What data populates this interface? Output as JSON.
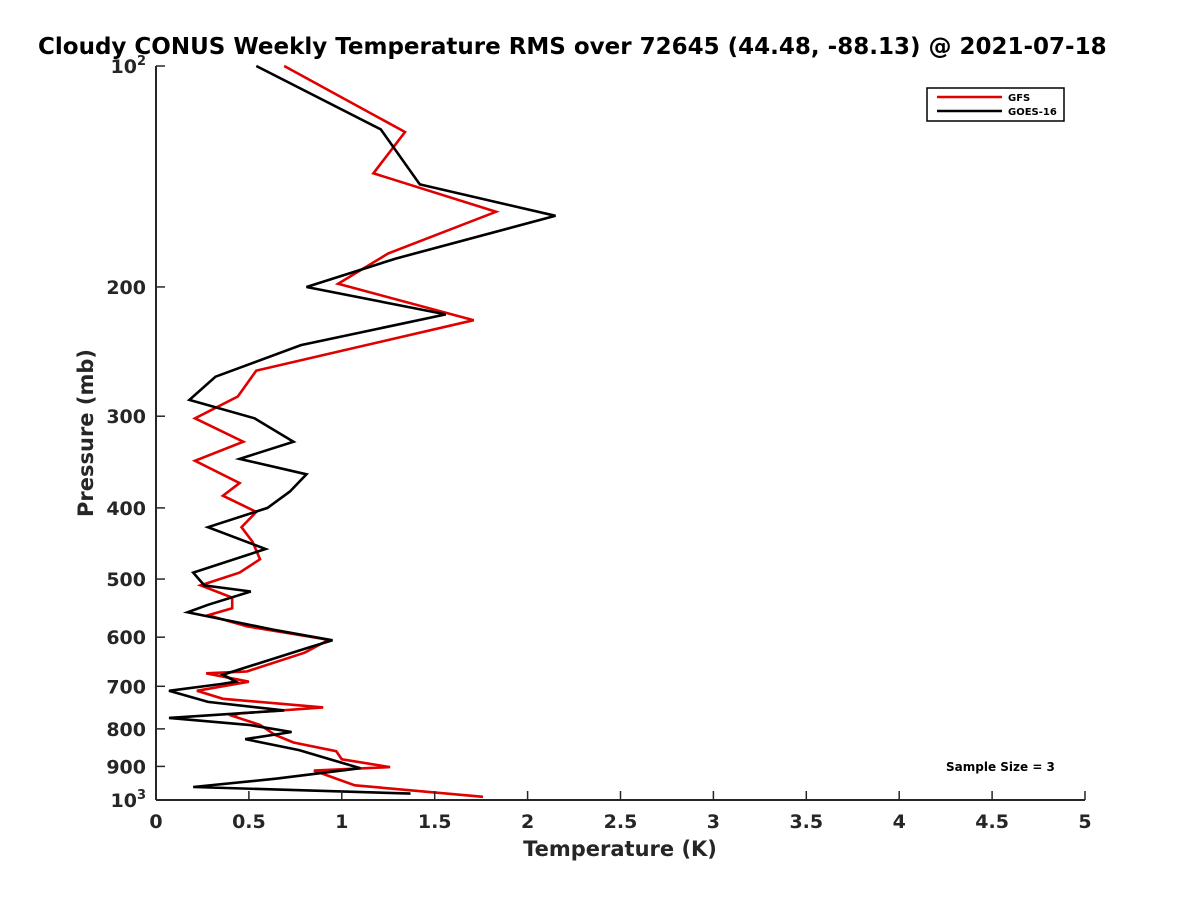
{
  "chart_data": {
    "type": "line",
    "title": "Cloudy CONUS Weekly Temperature RMS over 72645 (44.48, -88.13) @ 2021-07-18",
    "xlabel": "Temperature (K)",
    "ylabel": "Pressure (mb)",
    "xlim": [
      0,
      5
    ],
    "ylim": [
      100,
      1000
    ],
    "y_scale": "log",
    "y_reversed": true,
    "x_ticks": [
      {
        "value": 0,
        "label": "0"
      },
      {
        "value": 0.5,
        "label": "0.5"
      },
      {
        "value": 1,
        "label": "1"
      },
      {
        "value": 1.5,
        "label": "1.5"
      },
      {
        "value": 2,
        "label": "2"
      },
      {
        "value": 2.5,
        "label": "2.5"
      },
      {
        "value": 3,
        "label": "3"
      },
      {
        "value": 3.5,
        "label": "3.5"
      },
      {
        "value": 4,
        "label": "4"
      },
      {
        "value": 4.5,
        "label": "4.5"
      },
      {
        "value": 5,
        "label": "5"
      }
    ],
    "y_ticks": [
      {
        "value": 100,
        "base": "10",
        "exp": "2"
      },
      {
        "value": 200,
        "label": "200"
      },
      {
        "value": 300,
        "label": "300"
      },
      {
        "value": 400,
        "label": "400"
      },
      {
        "value": 500,
        "label": "500"
      },
      {
        "value": 600,
        "label": "600"
      },
      {
        "value": 700,
        "label": "700"
      },
      {
        "value": 800,
        "label": "800"
      },
      {
        "value": 900,
        "label": "900"
      },
      {
        "value": 1000,
        "base": "10",
        "exp": "3"
      }
    ],
    "grid": false,
    "legend_position": "top-right",
    "annotation": "Sample Size = 3",
    "series": [
      {
        "name": "GFS",
        "color": "#e00000",
        "x": [
          0.69,
          1.34,
          1.17,
          1.83,
          1.25,
          0.98,
          1.71,
          0.54,
          0.44,
          0.21,
          0.47,
          0.21,
          0.45,
          0.36,
          0.54,
          0.46,
          0.52,
          0.56,
          0.45,
          0.24,
          0.41,
          0.41,
          0.28,
          0.49,
          0.93,
          0.8,
          0.49,
          0.27,
          0.5,
          0.22,
          0.36,
          0.9,
          0.45,
          0.41,
          0.56,
          0.64,
          0.74,
          0.97,
          1.0,
          1.26,
          0.85,
          1.07,
          1.76
        ],
        "y": [
          100,
          123,
          140,
          158,
          180,
          198,
          222,
          260,
          282,
          302,
          325,
          345,
          370,
          385,
          405,
          425,
          445,
          470,
          490,
          510,
          530,
          548,
          560,
          580,
          605,
          630,
          668,
          672,
          690,
          710,
          728,
          748,
          762,
          768,
          790,
          815,
          835,
          858,
          880,
          902,
          912,
          955,
          990
        ]
      },
      {
        "name": "GOES-16",
        "color": "#000000",
        "x": [
          0.54,
          1.21,
          1.42,
          2.15,
          1.29,
          0.81,
          1.56,
          0.78,
          0.32,
          0.18,
          0.53,
          0.74,
          0.45,
          0.81,
          0.72,
          0.6,
          0.28,
          0.59,
          0.2,
          0.26,
          0.51,
          0.28,
          0.17,
          0.63,
          0.95,
          0.82,
          0.36,
          0.43,
          0.35,
          0.07,
          0.28,
          0.69,
          0.07,
          0.5,
          0.73,
          0.48,
          0.77,
          0.97,
          1.1,
          0.65,
          0.2,
          1.37
        ],
        "y": [
          100,
          122,
          145,
          160,
          183,
          200,
          218,
          240,
          265,
          285,
          302,
          325,
          343,
          360,
          380,
          400,
          425,
          455,
          490,
          510,
          520,
          542,
          555,
          586,
          606,
          620,
          675,
          690,
          695,
          710,
          735,
          755,
          773,
          790,
          808,
          826,
          855,
          885,
          905,
          935,
          960,
          980
        ]
      }
    ]
  }
}
